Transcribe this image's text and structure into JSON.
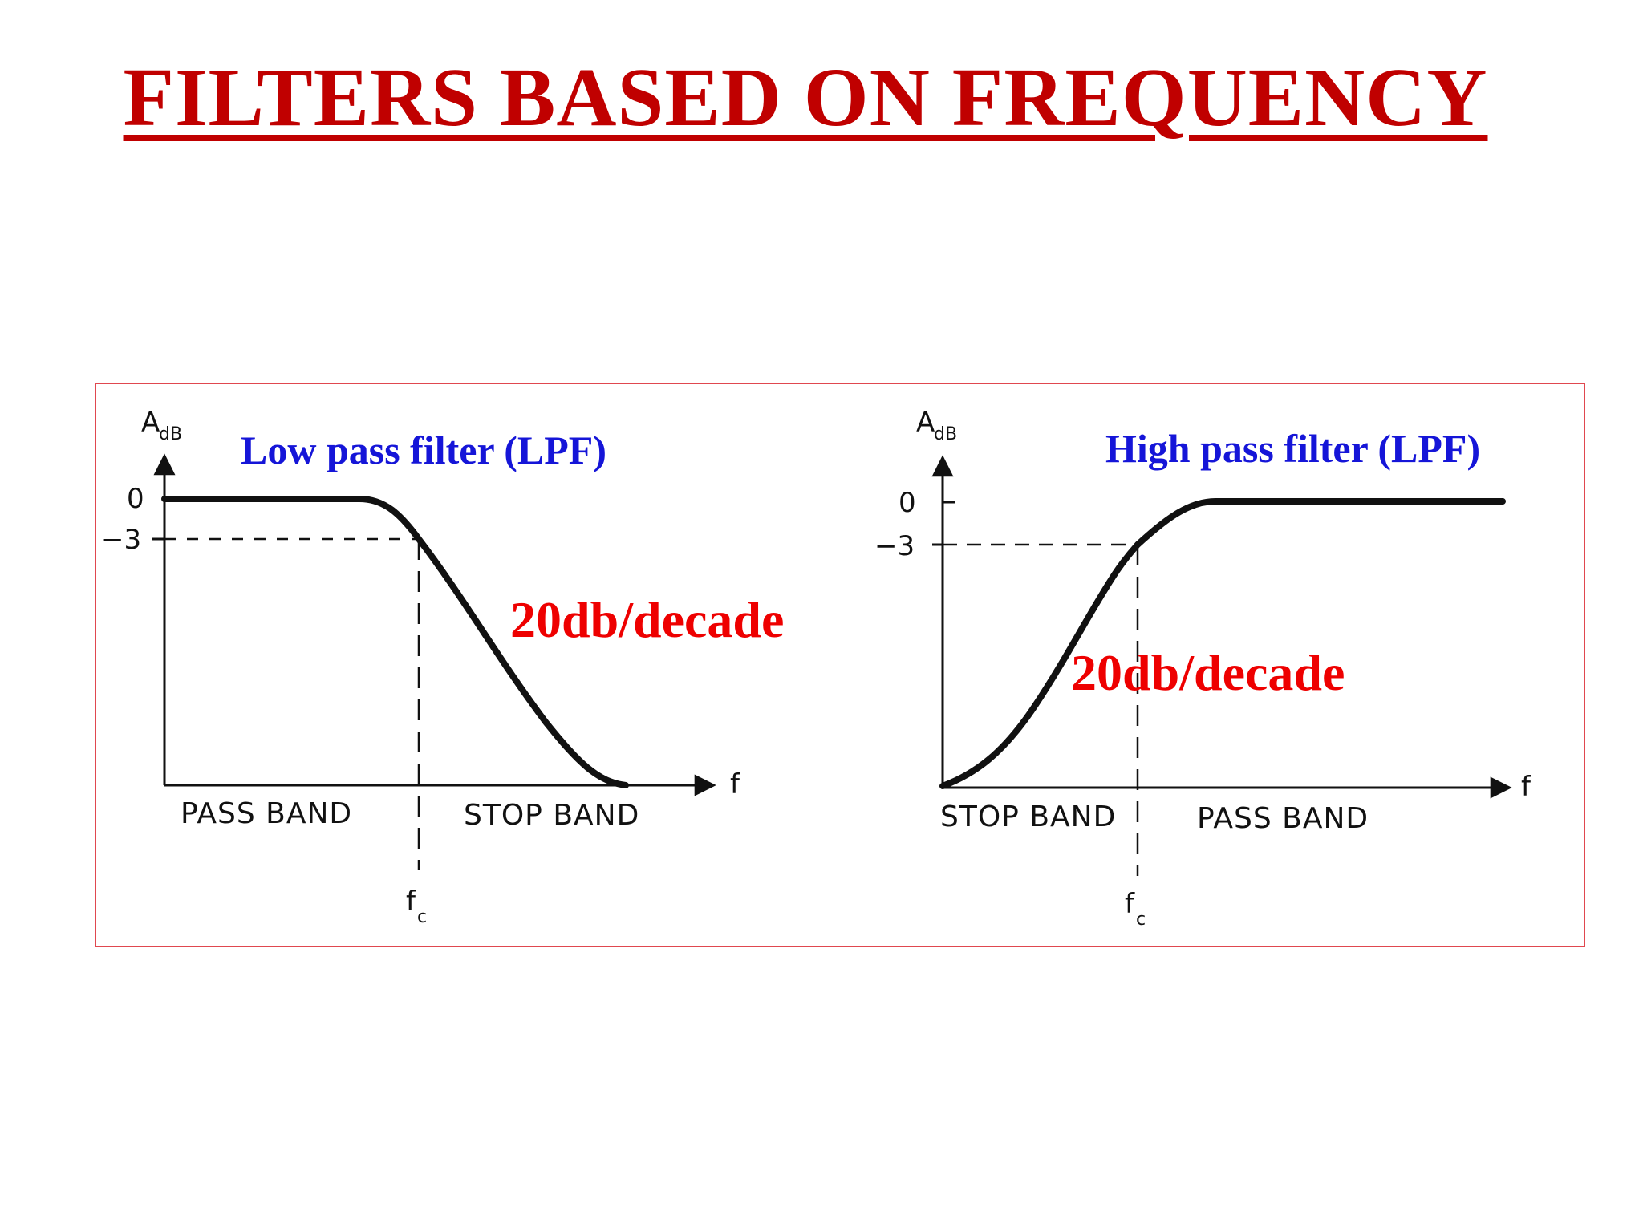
{
  "title": "FILTERS BASED ON FREQUENCY",
  "colors": {
    "title": "#c00000",
    "frame": "#e0484f",
    "filter_title": "#1515d8",
    "slope_label": "#ee0000",
    "curve": "#111111"
  },
  "lpf": {
    "title": "Low pass filter (LPF)",
    "y_axis_label": "A",
    "y_axis_subscript": "dB",
    "y_tick_0": "0",
    "y_tick_minus3": "−3",
    "x_axis_label": "f",
    "cutoff_label": "f",
    "cutoff_subscript": "c",
    "left_band": "PASS BAND",
    "right_band": "STOP BAND",
    "slope_label": "20db/decade"
  },
  "hpf": {
    "title": "High pass filter (LPF)",
    "y_axis_label": "A",
    "y_axis_subscript": "dB",
    "y_tick_0": "0",
    "y_tick_minus3": "−3",
    "x_axis_label": "f",
    "cutoff_label": "f",
    "cutoff_subscript": "c",
    "left_band": "STOP BAND",
    "right_band": "PASS BAND",
    "slope_label": "20db/decade"
  }
}
